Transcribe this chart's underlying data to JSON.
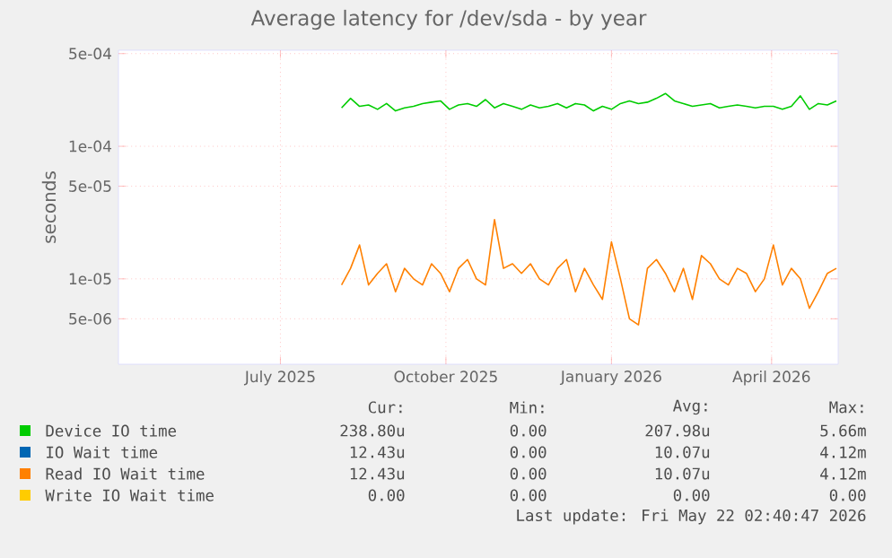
{
  "chart_data": {
    "type": "line",
    "title": "Average latency for /dev/sda - by year",
    "ylabel": "seconds",
    "log": "y",
    "grid": true,
    "legend": "bottom",
    "line_style": "solid",
    "xlim": [
      "2025-04-17",
      "2026-05-22"
    ],
    "xticks": [
      {
        "value": "2025-07-16",
        "label": "July 2025"
      },
      {
        "value": "2025-10-16",
        "label": "October 2025"
      },
      {
        "value": "2026-01-16",
        "label": "January 2026"
      },
      {
        "value": "2026-04-15",
        "label": "April 2026"
      }
    ],
    "ylim": [
      2.27e-06,
      0.00053
    ],
    "yticks": [
      {
        "value": 5e-06,
        "label": "5e-06"
      },
      {
        "value": 1e-05,
        "label": "1e-05"
      },
      {
        "value": 5e-05,
        "label": "5e-05"
      },
      {
        "value": 0.0001,
        "label": "1e-04"
      },
      {
        "value": 0.0005,
        "label": "5e-04"
      }
    ],
    "x": [
      "2025-08-19",
      "2025-08-24",
      "2025-08-29",
      "2025-09-03",
      "2025-09-08",
      "2025-09-13",
      "2025-09-18",
      "2025-09-23",
      "2025-09-28",
      "2025-10-03",
      "2025-10-08",
      "2025-10-13",
      "2025-10-18",
      "2025-10-23",
      "2025-10-28",
      "2025-11-02",
      "2025-11-07",
      "2025-11-12",
      "2025-11-17",
      "2025-11-22",
      "2025-11-27",
      "2025-12-02",
      "2025-12-07",
      "2025-12-12",
      "2025-12-17",
      "2025-12-22",
      "2025-12-27",
      "2026-01-01",
      "2026-01-06",
      "2026-01-11",
      "2026-01-16",
      "2026-01-21",
      "2026-01-26",
      "2026-01-31",
      "2026-02-05",
      "2026-02-10",
      "2026-02-15",
      "2026-02-20",
      "2026-02-25",
      "2026-03-02",
      "2026-03-07",
      "2026-03-12",
      "2026-03-17",
      "2026-03-22",
      "2026-03-27",
      "2026-04-01",
      "2026-04-06",
      "2026-04-11",
      "2026-04-16",
      "2026-04-21",
      "2026-04-26",
      "2026-05-01",
      "2026-05-06",
      "2026-05-11",
      "2026-05-16",
      "2026-05-21"
    ],
    "series": [
      {
        "name": "Device IO time",
        "color": "#00cc00",
        "values": [
          0.000195,
          0.00023,
          0.0002,
          0.000205,
          0.00019,
          0.00021,
          0.000185,
          0.000195,
          0.0002,
          0.00021,
          0.000215,
          0.00022,
          0.00019,
          0.000205,
          0.00021,
          0.0002,
          0.000225,
          0.000195,
          0.00021,
          0.0002,
          0.00019,
          0.000205,
          0.000195,
          0.0002,
          0.00021,
          0.000195,
          0.00021,
          0.000205,
          0.000185,
          0.0002,
          0.00019,
          0.00021,
          0.00022,
          0.00021,
          0.000215,
          0.00023,
          0.00025,
          0.00022,
          0.00021,
          0.0002,
          0.000205,
          0.00021,
          0.000195,
          0.0002,
          0.000205,
          0.0002,
          0.000195,
          0.0002,
          0.0002,
          0.00019,
          0.0002,
          0.00024,
          0.00019,
          0.00021,
          0.000205,
          0.00022
        ]
      },
      {
        "name": "IO Wait time",
        "color": "#0066b3",
        "values": [
          null,
          null,
          null,
          null,
          null,
          null,
          null,
          null,
          null,
          null,
          null,
          null,
          null,
          null,
          null,
          null,
          null,
          null,
          null,
          null,
          null,
          null,
          null,
          null,
          null,
          null,
          null,
          null,
          null,
          null,
          null,
          null,
          null,
          null,
          null,
          null,
          null,
          null,
          null,
          null,
          null,
          null,
          null,
          null,
          null,
          null,
          null,
          null,
          null,
          null,
          null,
          null,
          null,
          null,
          null,
          null
        ]
      },
      {
        "name": "Read IO Wait time",
        "color": "#ff8000",
        "values": [
          9e-06,
          1.2e-05,
          1.8e-05,
          9e-06,
          1.1e-05,
          1.3e-05,
          8e-06,
          1.2e-05,
          1e-05,
          9e-06,
          1.3e-05,
          1.1e-05,
          8e-06,
          1.2e-05,
          1.4e-05,
          1e-05,
          9e-06,
          2.8e-05,
          1.2e-05,
          1.3e-05,
          1.1e-05,
          1.3e-05,
          1e-05,
          9e-06,
          1.2e-05,
          1.4e-05,
          8e-06,
          1.2e-05,
          9e-06,
          7e-06,
          1.9e-05,
          1e-05,
          5e-06,
          4.5e-06,
          1.2e-05,
          1.4e-05,
          1.1e-05,
          8e-06,
          1.2e-05,
          7e-06,
          1.5e-05,
          1.3e-05,
          1e-05,
          9e-06,
          1.2e-05,
          1.1e-05,
          8e-06,
          1e-05,
          1.8e-05,
          9e-06,
          1.2e-05,
          1e-05,
          6e-06,
          8e-06,
          1.1e-05,
          1.2e-05
        ]
      },
      {
        "name": "Write IO Wait time",
        "color": "#ffcc00",
        "values": [
          null,
          null,
          null,
          null,
          null,
          null,
          null,
          null,
          null,
          null,
          null,
          null,
          null,
          null,
          null,
          null,
          null,
          null,
          null,
          null,
          null,
          null,
          null,
          null,
          null,
          null,
          null,
          null,
          null,
          null,
          null,
          null,
          null,
          null,
          null,
          null,
          null,
          null,
          null,
          null,
          null,
          null,
          null,
          null,
          null,
          null,
          null,
          null,
          null,
          null,
          null,
          null,
          null,
          null,
          null,
          null
        ]
      }
    ],
    "annotations": [
      "Cur:",
      "Min:",
      "Avg:",
      "Max:",
      "238.80u",
      "0.00",
      "207.98u",
      "5.66m",
      "12.43u",
      "0.00",
      "10.07u",
      "4.12m",
      "12.43u",
      "0.00",
      "10.07u",
      "4.12m",
      "0.00",
      "0.00",
      "0.00",
      "0.00",
      "Last update: Fri May 22 02:40:47 2026"
    ]
  }
}
